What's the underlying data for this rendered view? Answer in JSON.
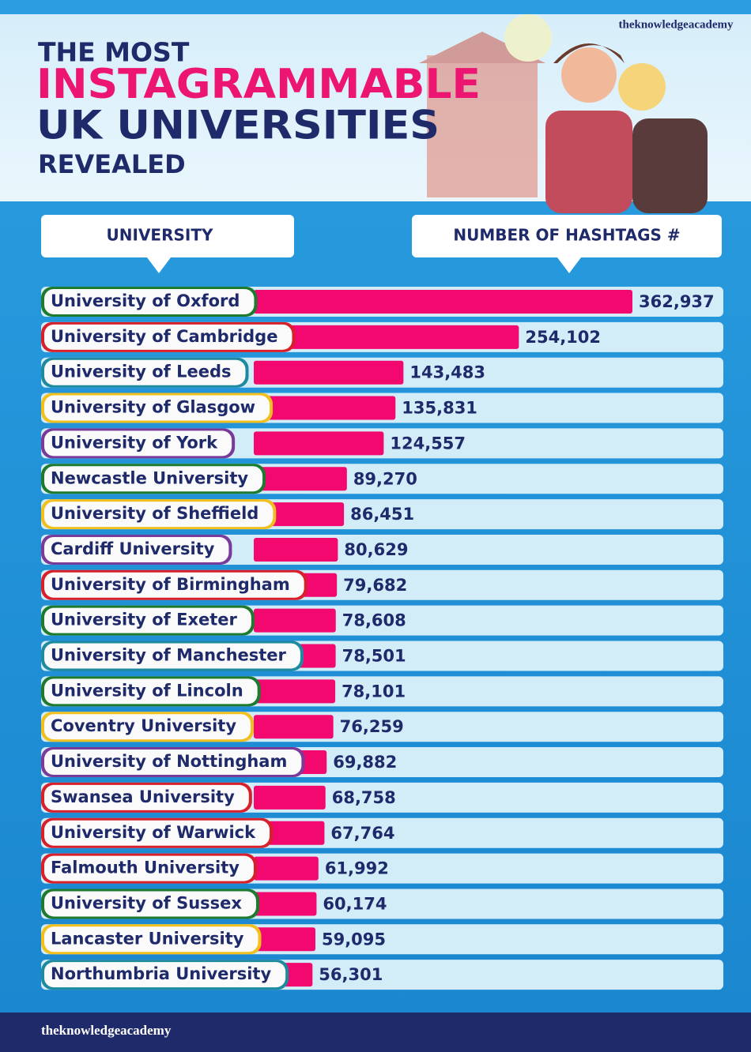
{
  "brand": "theknowledgeacademy",
  "chart_data": {
    "type": "bar",
    "orientation": "horizontal",
    "title_lines": [
      "THE MOST",
      "INSTAGRAMMABLE",
      "UK UNIVERSITIES",
      "REVEALED"
    ],
    "category_header": "UNIVERSITY",
    "value_header": "NUMBER OF HASHTAGS #",
    "categories": [
      "University of Oxford",
      "University of Cambridge",
      "University of Leeds",
      "University of Glasgow",
      "University of York",
      "Newcastle University",
      "University of Sheffield",
      "Cardiff University",
      "University of Birmingham",
      "University of Exeter",
      "University of Manchester",
      "University of Lincoln",
      "Coventry University",
      "University of Nottingham",
      "Swansea University",
      "University of Warwick",
      "Falmouth University",
      "University of Sussex",
      "Lancaster University",
      "Northumbria University"
    ],
    "values": [
      362937,
      254102,
      143483,
      135831,
      124557,
      89270,
      86451,
      80629,
      79682,
      78608,
      78501,
      78101,
      76259,
      69882,
      68758,
      67764,
      61992,
      60174,
      59095,
      56301
    ],
    "value_labels": [
      "362,937",
      "254,102",
      "143,483",
      "135,831",
      "124,557",
      "89,270",
      "86,451",
      "80,629",
      "79,682",
      "78,608",
      "78,501",
      "78,101",
      "76,259",
      "69,882",
      "68,758",
      "67,764",
      "61,992",
      "60,174",
      "59,095",
      "56,301"
    ],
    "color": "#f2086e"
  }
}
